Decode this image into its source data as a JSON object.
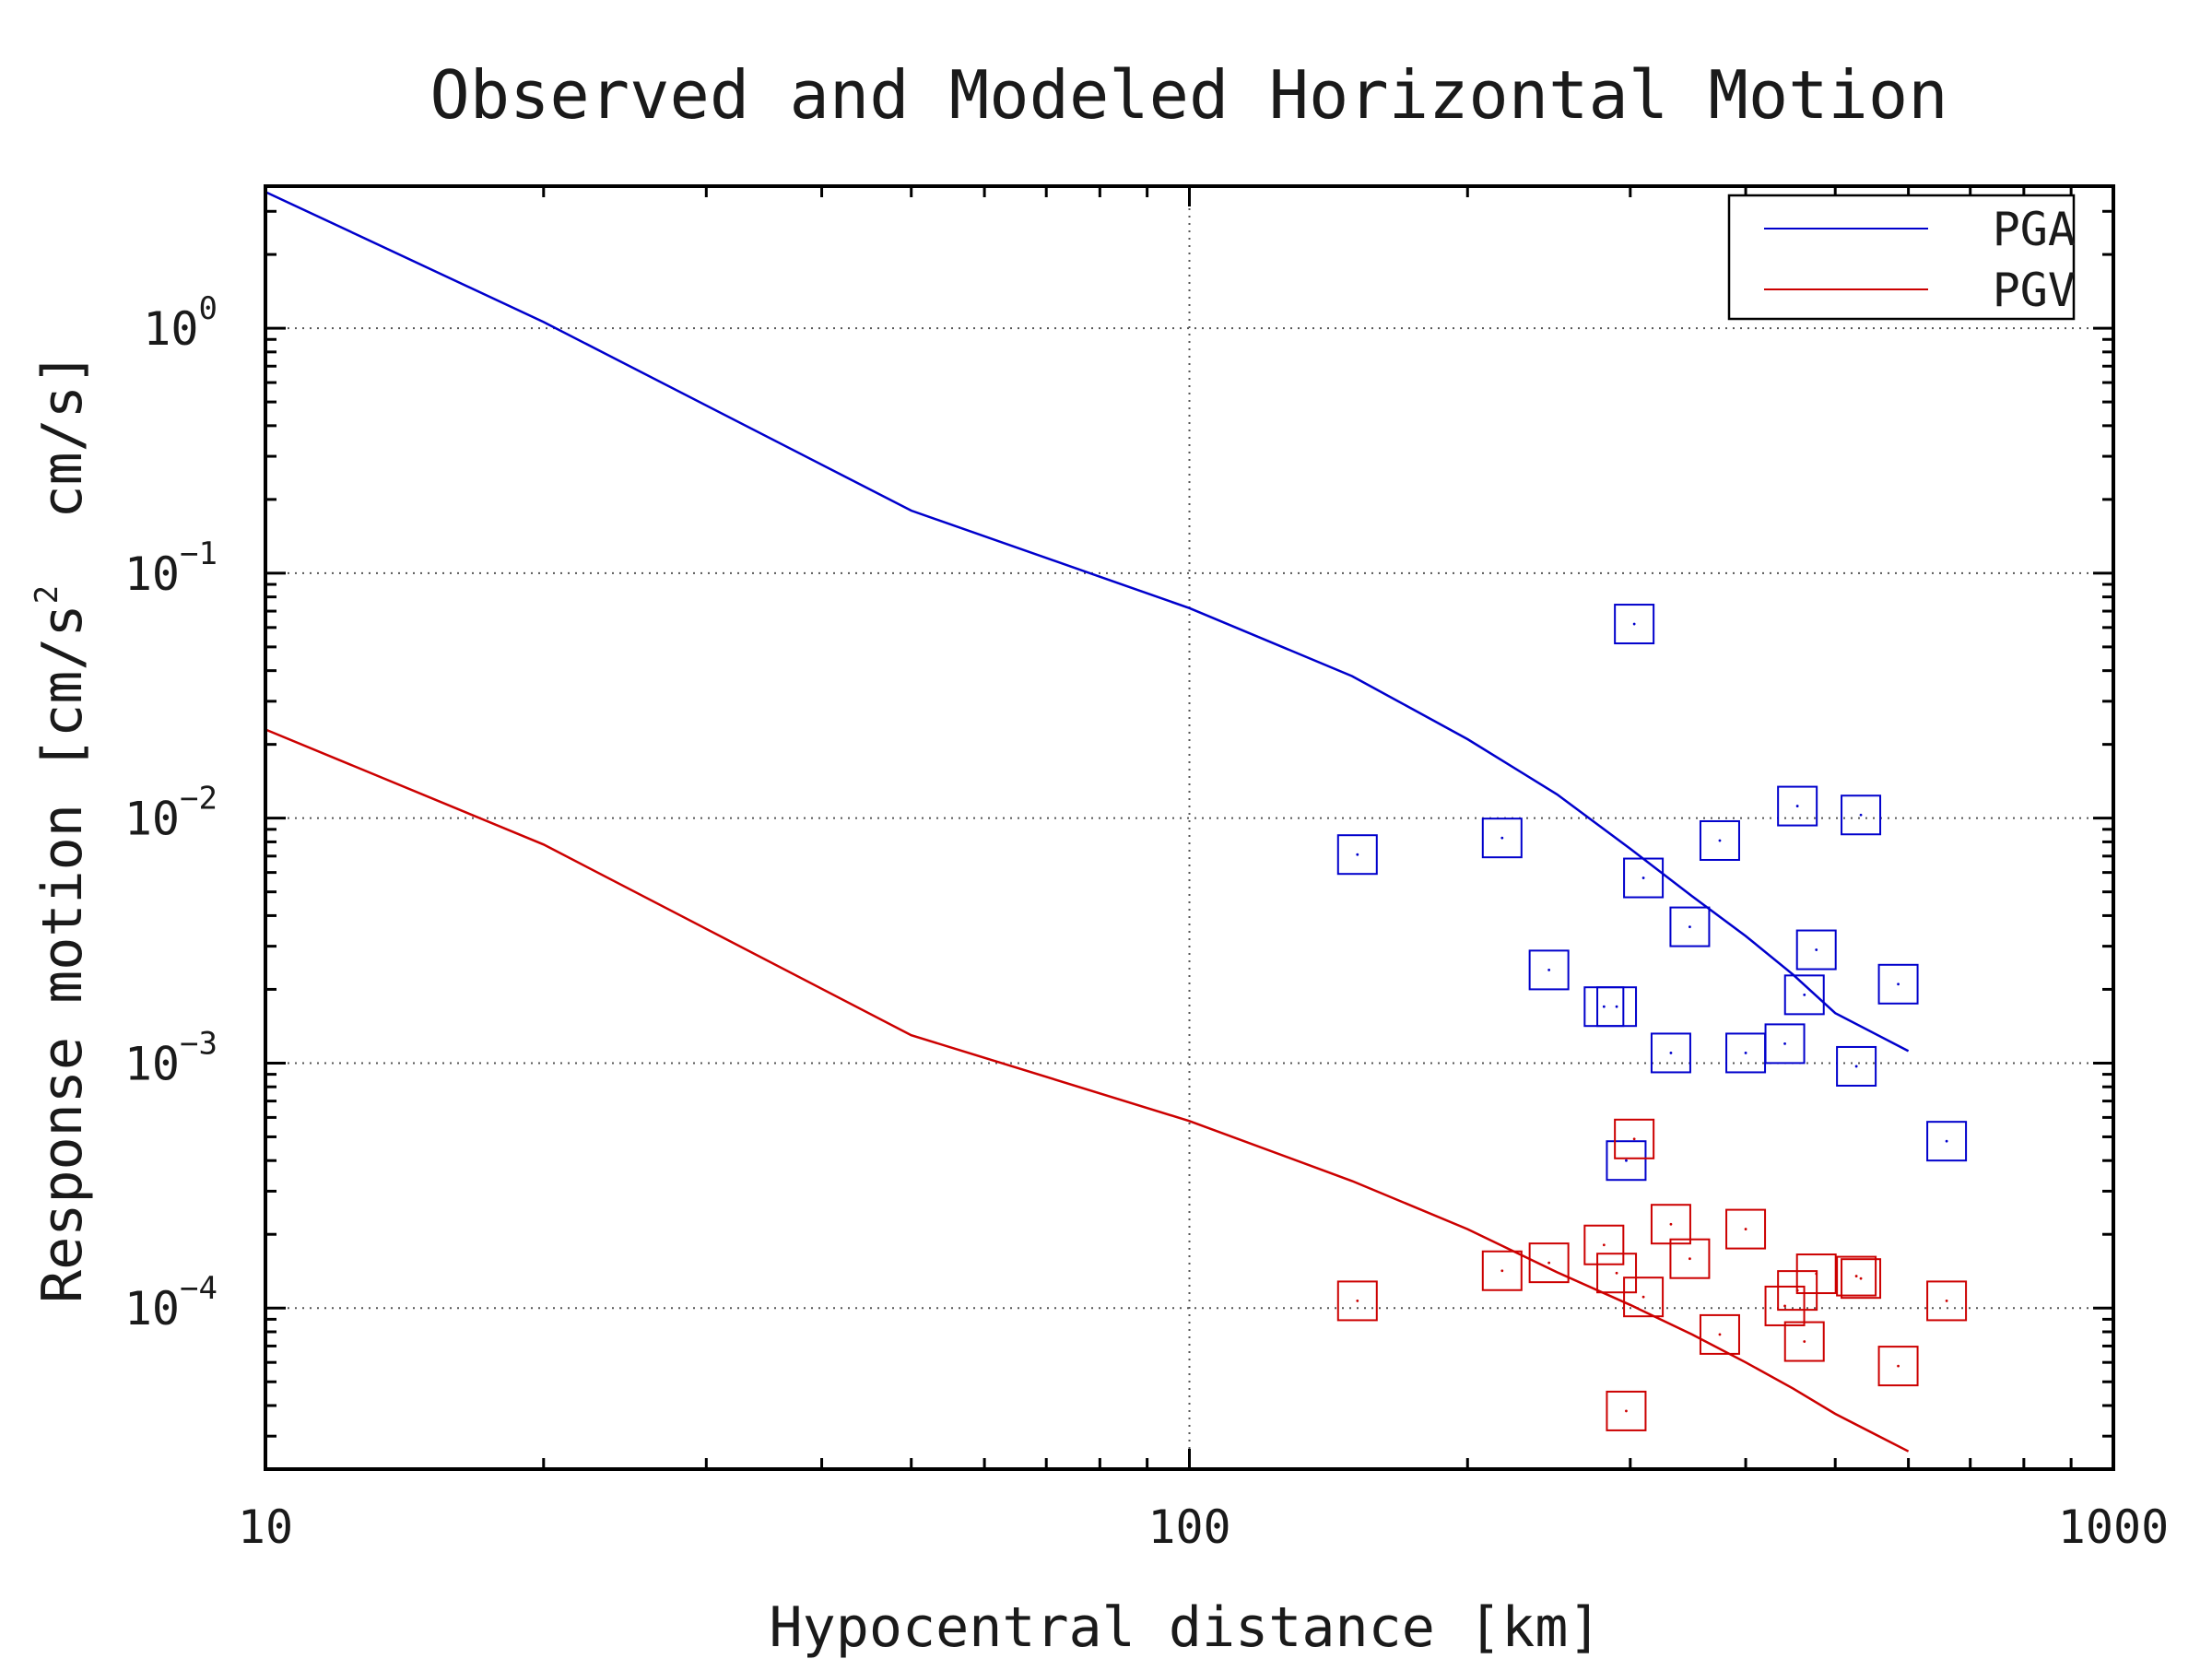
{
  "chart_data": {
    "type": "scatter",
    "title": "Observed and Modeled Horizontal Motion",
    "xlabel": "Hypocentral distance [km]",
    "ylabel_parts": [
      "Response motion [cm/s",
      "2",
      "  cm/s]"
    ],
    "x_scale": "log",
    "y_scale": "log",
    "xlim": [
      10,
      1000
    ],
    "ylim": [
      2.2e-05,
      3.8
    ],
    "x_ticks": [
      {
        "value": 10,
        "label": "10"
      },
      {
        "value": 100,
        "label": "100"
      },
      {
        "value": 1000,
        "label": "1000"
      }
    ],
    "y_ticks": [
      {
        "value": 1,
        "base": "10",
        "exp": "0"
      },
      {
        "value": 0.1,
        "base": "10",
        "exp": "−1"
      },
      {
        "value": 0.01,
        "base": "10",
        "exp": "−2"
      },
      {
        "value": 0.001,
        "base": "10",
        "exp": "−3"
      },
      {
        "value": 0.0001,
        "base": "10",
        "exp": "−4"
      }
    ],
    "grid": true,
    "legend_position": "top-right",
    "series": [
      {
        "name": "PGA",
        "kind": "line",
        "color": "#0000cc",
        "points": [
          [
            10,
            3.6
          ],
          [
            20,
            1.06
          ],
          [
            50,
            0.18
          ],
          [
            100,
            0.072
          ],
          [
            150,
            0.038
          ],
          [
            200,
            0.021
          ],
          [
            250,
            0.0125
          ],
          [
            300,
            0.0075
          ],
          [
            350,
            0.0048
          ],
          [
            400,
            0.0033
          ],
          [
            450,
            0.0023
          ],
          [
            500,
            0.0016
          ],
          [
            600,
            0.00112
          ]
        ]
      },
      {
        "name": "PGV",
        "kind": "line",
        "color": "#cc0000",
        "points": [
          [
            10,
            0.023
          ],
          [
            20,
            0.0078
          ],
          [
            50,
            0.0013
          ],
          [
            100,
            0.00058
          ],
          [
            150,
            0.00033
          ],
          [
            200,
            0.00021
          ],
          [
            250,
            0.00014
          ],
          [
            300,
            0.000103
          ],
          [
            350,
            7.8e-05
          ],
          [
            400,
            6e-05
          ],
          [
            450,
            4.7e-05
          ],
          [
            500,
            3.7e-05
          ],
          [
            600,
            2.6e-05
          ]
        ]
      },
      {
        "name": "PGA observed",
        "kind": "markers",
        "marker": "square",
        "color": "#0000cc",
        "points": [
          [
            152,
            0.0071
          ],
          [
            218,
            0.0083
          ],
          [
            245,
            0.0024
          ],
          [
            281,
            0.0017
          ],
          [
            290,
            0.0017
          ],
          [
            297,
            0.0004
          ],
          [
            303,
            0.062
          ],
          [
            310,
            0.0057
          ],
          [
            332,
            0.0011
          ],
          [
            348,
            0.0036
          ],
          [
            375,
            0.0081
          ],
          [
            400,
            0.0011
          ],
          [
            441,
            0.0012
          ],
          [
            455,
            0.0112
          ],
          [
            463,
            0.0019
          ],
          [
            477,
            0.0029
          ],
          [
            527,
            0.00097
          ],
          [
            533,
            0.0103
          ],
          [
            585,
            0.0021
          ],
          [
            660,
            0.00048
          ]
        ]
      },
      {
        "name": "PGV observed",
        "kind": "markers",
        "marker": "square",
        "color": "#cc0000",
        "points": [
          [
            152,
            0.000107
          ],
          [
            218,
            0.000142
          ],
          [
            245,
            0.000153
          ],
          [
            281,
            0.000181
          ],
          [
            290,
            0.000139
          ],
          [
            297,
            3.8e-05
          ],
          [
            303,
            0.00049
          ],
          [
            310,
            0.000111
          ],
          [
            332,
            0.00022
          ],
          [
            348,
            0.000159
          ],
          [
            375,
            7.8e-05
          ],
          [
            400,
            0.00021
          ],
          [
            441,
            0.000102
          ],
          [
            455,
            0.000118
          ],
          [
            463,
            7.3e-05
          ],
          [
            477,
            0.000138
          ],
          [
            527,
            0.000135
          ],
          [
            533,
            0.000132
          ],
          [
            585,
            5.8e-05
          ],
          [
            660,
            0.000107
          ]
        ]
      }
    ],
    "legend": [
      {
        "label": "PGA",
        "color": "#0000cc"
      },
      {
        "label": "PGV",
        "color": "#cc0000"
      }
    ]
  }
}
